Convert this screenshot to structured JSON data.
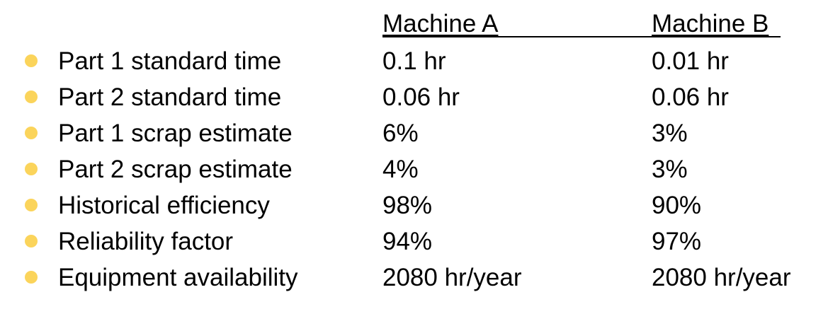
{
  "columns": {
    "machine_a": "Machine A",
    "machine_b": "Machine B"
  },
  "rows": [
    {
      "label": "Part 1 standard time",
      "machine_a": "0.1 hr",
      "machine_b": "0.01 hr"
    },
    {
      "label": "Part 2 standard time",
      "machine_a": "0.06 hr",
      "machine_b": "0.06 hr"
    },
    {
      "label": "Part 1 scrap estimate",
      "machine_a": "6%",
      "machine_b": "3%"
    },
    {
      "label": "Part 2 scrap estimate",
      "machine_a": "4%",
      "machine_b": "3%"
    },
    {
      "label": "Historical efficiency",
      "machine_a": "98%",
      "machine_b": "90%"
    },
    {
      "label": "Reliability factor",
      "machine_a": "94%",
      "machine_b": "97%"
    },
    {
      "label": "Equipment availability",
      "machine_a": "2080 hr/year",
      "machine_b": "2080 hr/year"
    }
  ],
  "colors": {
    "bullet": "#fbd45b",
    "text": "#000000",
    "background": "#ffffff"
  }
}
